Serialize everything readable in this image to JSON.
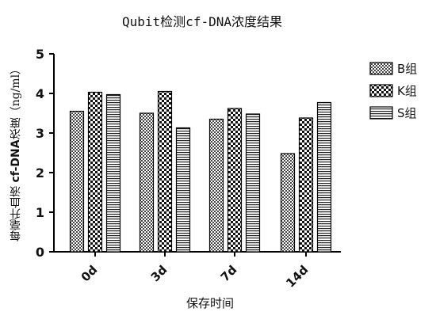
{
  "chart_data": {
    "type": "bar",
    "title": "Qubit检测cf-DNA浓度结果",
    "xlabel": "保存时间",
    "ylabel_prefix": "每毫升血液 ",
    "ylabel_bold": "cf-DNA",
    "ylabel_suffix": "浓度（ng/ml）",
    "categories": [
      "0d",
      "3d",
      "7d",
      "14d"
    ],
    "series": [
      {
        "name": "B组",
        "values": [
          3.55,
          3.5,
          3.35,
          2.48
        ],
        "pattern": "checker"
      },
      {
        "name": "K组",
        "values": [
          4.03,
          4.05,
          3.62,
          3.38
        ],
        "pattern": "bigchecker"
      },
      {
        "name": "S组",
        "values": [
          3.97,
          3.13,
          3.48,
          3.77
        ],
        "pattern": "hstripes"
      }
    ],
    "ylim": [
      0,
      5
    ],
    "yticks": [
      0,
      1,
      2,
      3,
      4,
      5
    ],
    "legend_position": "right",
    "grid": false
  }
}
